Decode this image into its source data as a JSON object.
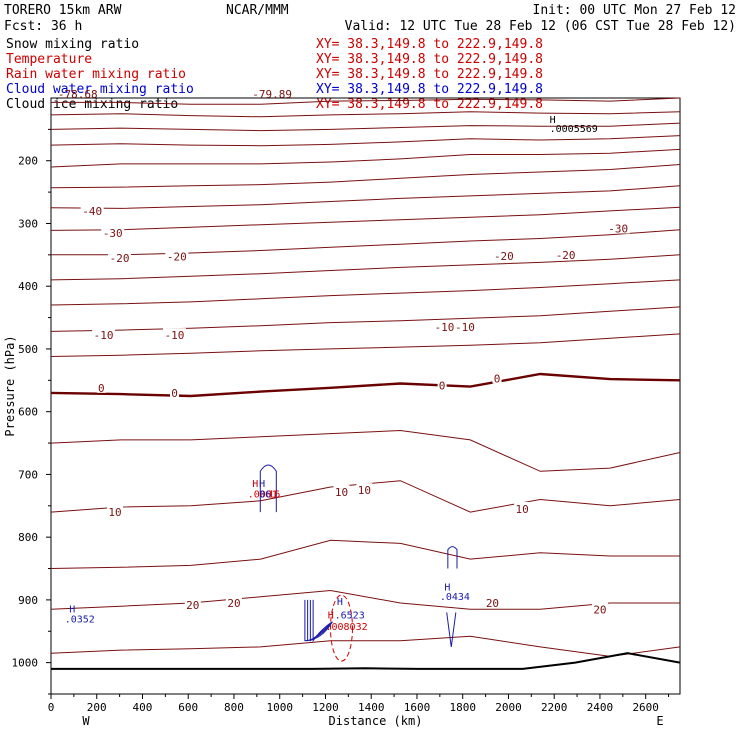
{
  "header": {
    "model": "TORERO  15km ARW",
    "org": "NCAR/MMM",
    "init": "Init: 00 UTC Mon 27 Feb 12",
    "fcst": "Fcst:   36 h",
    "valid": "Valid: 12 UTC Tue 28 Feb 12 (06 CST Tue 28 Feb 12)"
  },
  "fields": [
    {
      "name": "Snow mixing ratio",
      "xy": "XY=  38.3,149.8 to 222.9,149.8",
      "color": "#000000"
    },
    {
      "name": "Temperature",
      "xy": "XY=  38.3,149.8 to 222.9,149.8",
      "color": "#cc0000"
    },
    {
      "name": "Rain water mixing ratio",
      "xy": "XY=  38.3,149.8 to 222.9,149.8",
      "color": "#cc0000"
    },
    {
      "name": "Cloud water mixing ratio",
      "xy": "XY=  38.3,149.8 to 222.9,149.8",
      "color": "#0000cc"
    },
    {
      "name": "Cloud ice mixing ratio",
      "xy": "XY=  38.3,149.8 to 222.9,149.8",
      "color": "#000000"
    }
  ],
  "colors": {
    "isotherm": "#7a1010",
    "zero_isotherm": "#6a0000",
    "cloud_water": "#1a1aaa",
    "rain": "#cc0000",
    "ground": "#000000",
    "label_temp": "#7a1010"
  },
  "chart_data": {
    "type": "cross-section contour",
    "xlabel": "Distance (km)",
    "ylabel": "Pressure (hPa)",
    "xlim": [
      0,
      2750
    ],
    "ylim_hpa": [
      1050,
      100
    ],
    "x_ticks": [
      "0",
      "200",
      "400",
      "600",
      "800",
      "1000",
      "1200",
      "1400",
      "1600",
      "1800",
      "2000",
      "2200",
      "2400",
      "2600"
    ],
    "y_ticks": [
      "200",
      "300",
      "400",
      "500",
      "600",
      "700",
      "800",
      "900",
      "1000"
    ],
    "west_label": "W",
    "east_label": "E",
    "top_labels": [
      {
        "text": "-78.68",
        "x": 30,
        "p": 100
      },
      {
        "text": "-79.89",
        "x": 880,
        "p": 100
      }
    ],
    "isotherms": [
      {
        "p": [
          107,
          107,
          110,
          110,
          105,
          104,
          102,
          103,
          105,
          100
        ]
      },
      {
        "p": [
          127,
          125,
          128,
          130,
          127,
          125,
          122,
          124,
          125,
          122
        ]
      },
      {
        "p": [
          150,
          148,
          150,
          152,
          150,
          147,
          144,
          145,
          145,
          140
        ]
      },
      {
        "p": [
          175,
          173,
          175,
          176,
          174,
          170,
          165,
          167,
          165,
          160
        ]
      },
      {
        "p": [
          210,
          205,
          205,
          205,
          202,
          197,
          190,
          190,
          188,
          182
        ]
      },
      {
        "p": [
          243,
          242,
          240,
          238,
          234,
          228,
          222,
          218,
          214,
          206
        ]
      },
      {
        "p": [
          275,
          276,
          273,
          270,
          265,
          260,
          256,
          252,
          248,
          240
        ]
      },
      {
        "p": [
          311,
          310,
          306,
          302,
          298,
          294,
          290,
          286,
          280,
          274
        ]
      },
      {
        "p": [
          350,
          350,
          347,
          343,
          338,
          333,
          328,
          324,
          318,
          310
        ]
      },
      {
        "p": [
          390,
          388,
          384,
          380,
          375,
          370,
          366,
          362,
          357,
          350
        ]
      },
      {
        "p": [
          430,
          428,
          425,
          420,
          415,
          411,
          407,
          402,
          396,
          390
        ]
      },
      {
        "p": [
          472,
          470,
          467,
          463,
          458,
          455,
          451,
          447,
          440,
          433
        ]
      },
      {
        "p": [
          512,
          510,
          507,
          503,
          500,
          497,
          494,
          490,
          483,
          476
        ]
      },
      {
        "p": [
          650,
          645,
          645,
          640,
          635,
          630,
          645,
          695,
          690,
          665
        ]
      },
      {
        "p": [
          760,
          752,
          750,
          742,
          720,
          710,
          760,
          740,
          750,
          740
        ]
      },
      {
        "p": [
          850,
          848,
          845,
          835,
          805,
          810,
          835,
          825,
          830,
          830
        ]
      },
      {
        "p": [
          915,
          910,
          905,
          895,
          885,
          905,
          915,
          915,
          905,
          905
        ]
      },
      {
        "p": [
          985,
          980,
          978,
          975,
          965,
          965,
          958,
          975,
          990,
          975
        ]
      }
    ],
    "zero_isotherm": {
      "p": [
        570,
        572,
        575,
        568,
        562,
        555,
        560,
        540,
        548,
        550
      ]
    },
    "temp_labels": [
      {
        "text": "-40",
        "x": 180,
        "p": 280
      },
      {
        "text": "-30",
        "x": 270,
        "p": 315
      },
      {
        "text": "-30",
        "x": 2480,
        "p": 308
      },
      {
        "text": "-20",
        "x": 300,
        "p": 355
      },
      {
        "text": "-20",
        "x": 550,
        "p": 353
      },
      {
        "text": "-20",
        "x": 1980,
        "p": 352
      },
      {
        "text": "-20",
        "x": 2250,
        "p": 350
      },
      {
        "text": "-10",
        "x": 230,
        "p": 478
      },
      {
        "text": "-10",
        "x": 540,
        "p": 478
      },
      {
        "text": "-10",
        "x": 1720,
        "p": 465
      },
      {
        "text": "-10",
        "x": 1810,
        "p": 465
      },
      {
        "text": "0",
        "x": 220,
        "p": 562
      },
      {
        "text": "0",
        "x": 540,
        "p": 570
      },
      {
        "text": "0",
        "x": 1710,
        "p": 558
      },
      {
        "text": "0",
        "x": 1950,
        "p": 547
      },
      {
        "text": "10",
        "x": 1270,
        "p": 728
      },
      {
        "text": "10",
        "x": 1370,
        "p": 725
      },
      {
        "text": "10",
        "x": 280,
        "p": 760
      },
      {
        "text": "10",
        "x": 2060,
        "p": 755
      },
      {
        "text": "20",
        "x": 620,
        "p": 908
      },
      {
        "text": "20",
        "x": 800,
        "p": 905
      },
      {
        "text": "20",
        "x": 1930,
        "p": 905
      },
      {
        "text": "20",
        "x": 2400,
        "p": 915
      }
    ],
    "extrema": [
      {
        "text": "H",
        "x": 2180,
        "p": 140,
        "color": "#000000"
      },
      {
        "text": ".0005569",
        "x": 2180,
        "p": 154,
        "color": "#000000"
      },
      {
        "text": "H",
        "x": 880,
        "p": 720,
        "color": "#cc0000"
      },
      {
        "text": "H",
        "x": 910,
        "p": 720,
        "color": "#1a1aaa"
      },
      {
        "text": ".0001",
        "x": 860,
        "p": 737,
        "color": "#cc0000"
      },
      {
        "text": "06",
        "x": 910,
        "p": 737,
        "color": "#1a1aaa"
      },
      {
        "text": "16",
        "x": 950,
        "p": 737,
        "color": "#cc0000"
      },
      {
        "text": "H",
        "x": 1250,
        "p": 908,
        "color": "#1a1aaa"
      },
      {
        "text": "H",
        "x": 1210,
        "p": 930,
        "color": "#cc0000"
      },
      {
        "text": ".6523",
        "x": 1240,
        "p": 930,
        "color": "#1a1aaa"
      },
      {
        "text": ".008032",
        "x": 1200,
        "p": 948,
        "color": "#cc0000"
      },
      {
        "text": "H",
        "x": 1720,
        "p": 885,
        "color": "#1a1aaa"
      },
      {
        "text": ".0434",
        "x": 1700,
        "p": 900,
        "color": "#1a1aaa"
      },
      {
        "text": "H",
        "x": 80,
        "p": 920,
        "color": "#1a1aaa"
      },
      {
        "text": ".0352",
        "x": 60,
        "p": 936,
        "color": "#1a1aaa"
      }
    ],
    "ground": {
      "p": [
        1010,
        1010,
        1010,
        1010,
        1010,
        1010,
        1009,
        1010,
        1010,
        1010,
        1000,
        985,
        1000
      ]
    }
  }
}
